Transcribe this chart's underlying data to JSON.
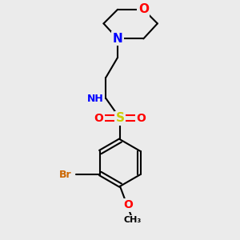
{
  "background_color": "#ebebeb",
  "atom_colors": {
    "C": "#000000",
    "H": "#5f9090",
    "N": "#0000ff",
    "O": "#ff0000",
    "S": "#cccc00",
    "Br": "#cc6600"
  },
  "bond_color": "#000000",
  "bond_width": 1.5,
  "font_size_atoms": 9
}
